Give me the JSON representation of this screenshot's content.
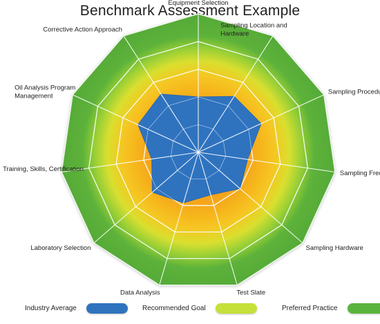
{
  "chart_data": {
    "type": "radar",
    "title": "Benchmark Assessment Example",
    "axes": [
      "Equipment Selection",
      "Sampling Location and Hardware",
      "Sampling Procedure",
      "Sampling Frequency",
      "Sampling Hardware",
      "Test Slate",
      "Data Analysis",
      "Laboratory Selection",
      "Training, Skills, Certification",
      "Oil Analysis Program Management",
      "Corrective Action Approach"
    ],
    "scale": {
      "min": 0,
      "max": 5,
      "rings": 5
    },
    "series": [
      {
        "name": "Industry Average",
        "color": "#2f73bf",
        "values": [
          2.0,
          2.4,
          2.5,
          1.8,
          2.0,
          1.6,
          1.9,
          2.2,
          1.7,
          2.4,
          2.5
        ]
      },
      {
        "name": "Recommended Goal",
        "color": "#c6e03a",
        "values": [
          3,
          3,
          3,
          3,
          3,
          3,
          3,
          3,
          3,
          3,
          3
        ]
      },
      {
        "name": "Preferred Practice",
        "color": "#5ab33c",
        "values": [
          5,
          5,
          5,
          5,
          5,
          5,
          5,
          5,
          5,
          5,
          5
        ]
      }
    ],
    "band_colors": [
      "#f39a1e",
      "#f7b81c",
      "#f5d02a",
      "#b8d838",
      "#5ab33c"
    ],
    "legend": {
      "placement": "bottom",
      "items": [
        "Industry Average",
        "Recommended Goal",
        "Preferred Practice"
      ]
    }
  }
}
